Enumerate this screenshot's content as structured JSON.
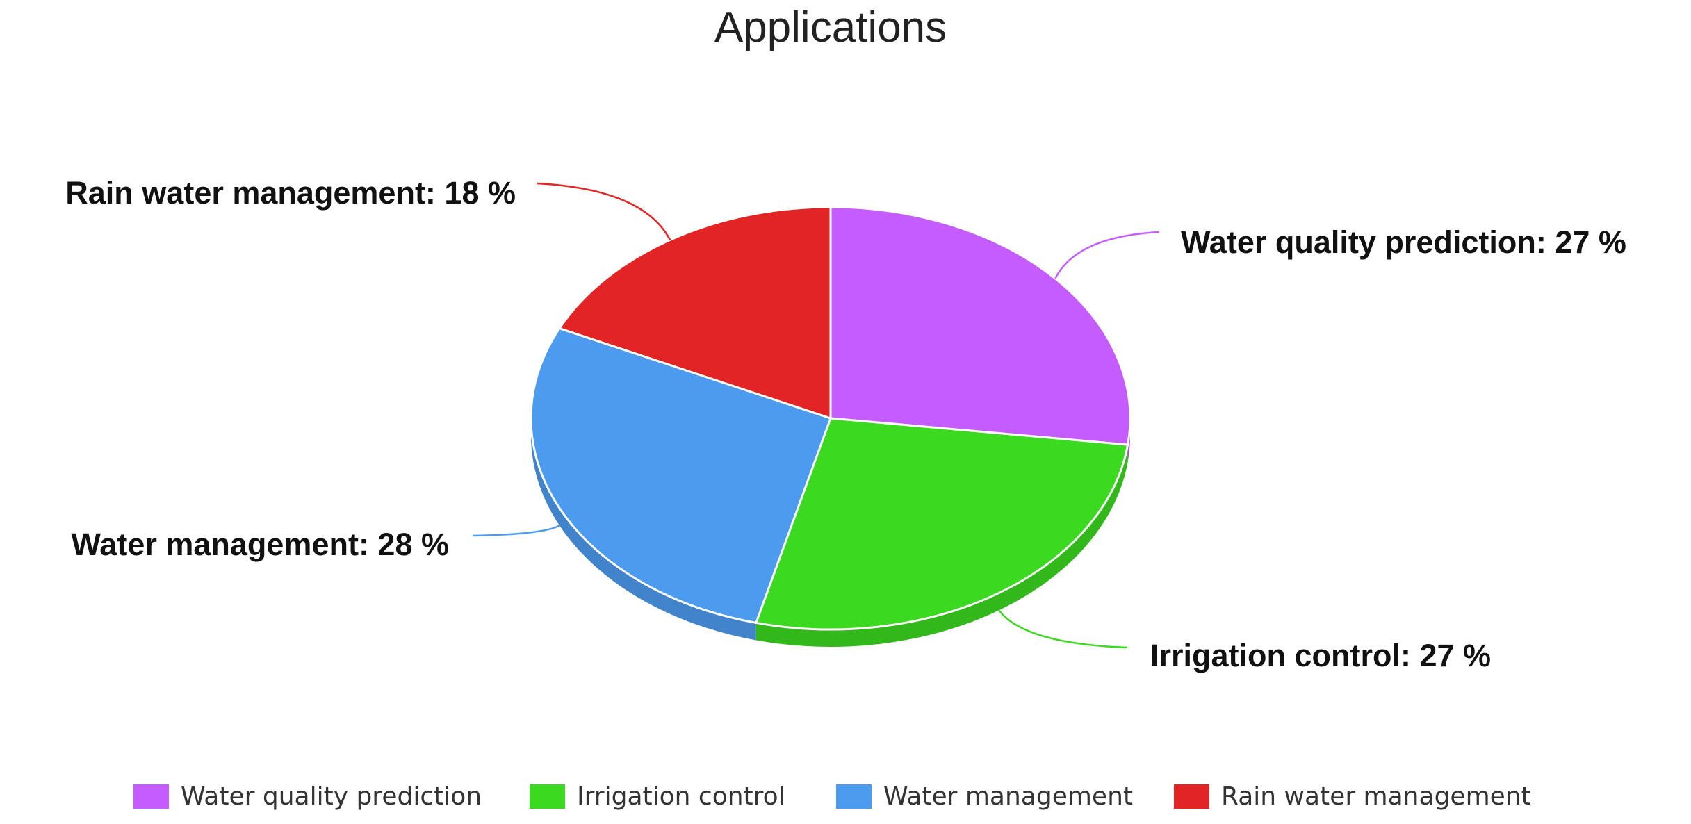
{
  "chart_data": {
    "type": "pie",
    "title": "Applications",
    "categories": [
      "Water quality prediction",
      "Irrigation control",
      "Water management",
      "Rain water management"
    ],
    "values": [
      27,
      27,
      28,
      18
    ],
    "value_labels": [
      "Water quality prediction: 27 %",
      "Irrigation control: 27 %",
      "Water management: 28 %",
      "Rain water management: 18 %"
    ],
    "colors": [
      "#c45cff",
      "#3cd921",
      "#4d9bef",
      "#e32424"
    ],
    "legend": "bottom"
  }
}
